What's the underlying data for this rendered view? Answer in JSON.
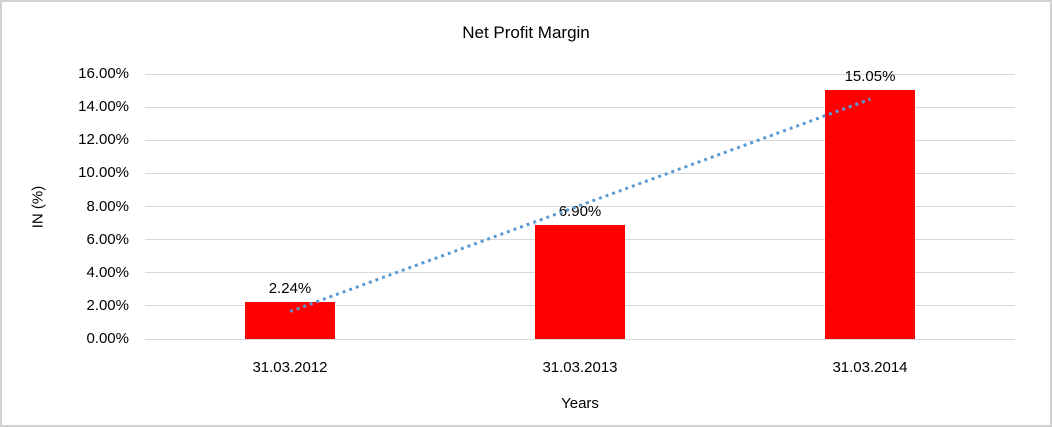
{
  "chart_data": {
    "type": "bar",
    "title": "Net Profit Margin",
    "xlabel": "Years",
    "ylabel": "IN (%)",
    "categories": [
      "31.03.2012",
      "31.03.2013",
      "31.03.2014"
    ],
    "series": [
      {
        "name": "Net Profit Margin",
        "values": [
          2.24,
          6.9,
          15.05
        ],
        "data_labels": [
          "2.24%",
          "6.90%",
          "15.05%"
        ],
        "color": "#ff0000"
      }
    ],
    "ylim": [
      0,
      16
    ],
    "ytick_step": 2,
    "ytick_labels": [
      "0.00%",
      "2.00%",
      "4.00%",
      "6.00%",
      "8.00%",
      "10.00%",
      "12.00%",
      "14.00%",
      "16.00%"
    ],
    "grid": true,
    "gridline_color": "#d9d9d9",
    "legend_position": "none",
    "plot_background": "#ffffff",
    "frame_border_color": "#d2d2d2",
    "trendline": {
      "type": "linear",
      "style": "dotted",
      "color": "#5b9bd5",
      "start_value": 1.66,
      "end_value": 14.47
    }
  }
}
